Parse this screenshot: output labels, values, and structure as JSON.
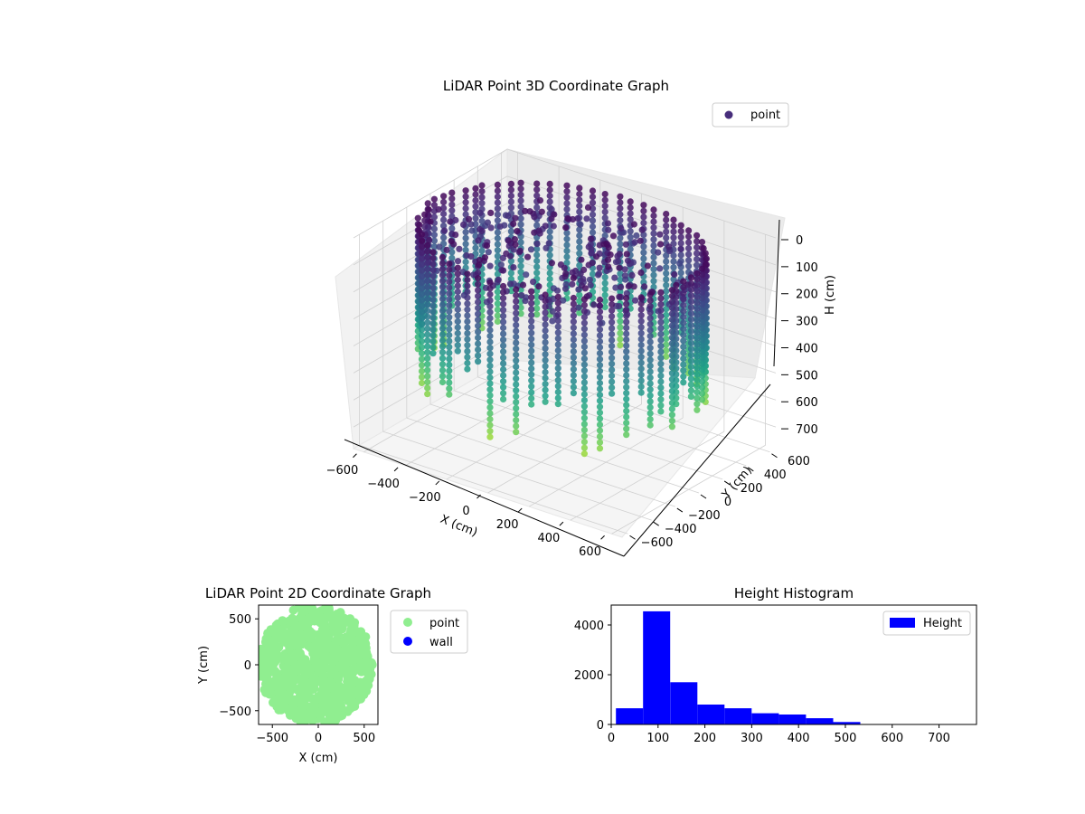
{
  "figure": {
    "background": "#ffffff"
  },
  "chart_data": [
    {
      "id": "lidar-3d",
      "type": "scatter",
      "title": "LiDAR Point 3D Coordinate Graph",
      "xlabel": "X (cm)",
      "ylabel": "Y (cm)",
      "zlabel": "H (cm)",
      "xlim": [
        -650,
        650
      ],
      "ylim": [
        -650,
        650
      ],
      "zlim": [
        0,
        780
      ],
      "z_inverted": true,
      "x_ticks": [
        -600,
        -400,
        -200,
        0,
        200,
        400,
        600
      ],
      "y_ticks": [
        -600,
        -400,
        -200,
        0,
        200,
        400,
        600
      ],
      "z_ticks": [
        0,
        100,
        200,
        300,
        400,
        500,
        600,
        700
      ],
      "grid": true,
      "legend": {
        "position": "top-right",
        "entries": [
          {
            "name": "point",
            "color": "#472d7b"
          }
        ]
      },
      "colormap": "viridis",
      "series": [
        {
          "name": "point",
          "shape": "wall ring scan, columns of points around the room perimeter",
          "room_extent_x": [
            -640,
            600
          ],
          "room_extent_y": [
            -600,
            620
          ],
          "wall_height_range": [
            20,
            600
          ],
          "ceiling_points": true
        }
      ]
    },
    {
      "id": "lidar-2d",
      "type": "scatter",
      "title": "LiDAR Point 2D Coordinate Graph",
      "xlabel": "X (cm)",
      "ylabel": "Y (cm)",
      "xlim": [
        -650,
        650
      ],
      "ylim": [
        -650,
        650
      ],
      "x_ticks": [
        -500,
        0,
        500
      ],
      "y_ticks": [
        -500,
        0,
        500
      ],
      "grid": false,
      "legend": {
        "position": "outside-right",
        "entries": [
          {
            "name": "point",
            "color": "#90ee90"
          },
          {
            "name": "wall",
            "color": "#0000ff"
          }
        ]
      },
      "series": [
        {
          "name": "point",
          "color": "#90ee90",
          "shape": "filled disc",
          "x_range": [
            -650,
            590
          ],
          "y_range": [
            -650,
            650
          ]
        }
      ]
    },
    {
      "id": "height-histogram",
      "type": "bar",
      "title": "Height Histogram",
      "xlabel": "",
      "ylabel": "",
      "xlim": [
        0,
        780
      ],
      "ylim": [
        0,
        4800
      ],
      "x_ticks": [
        0,
        100,
        200,
        300,
        400,
        500,
        600,
        700
      ],
      "y_ticks": [
        0,
        2000,
        4000
      ],
      "grid": false,
      "legend": {
        "position": "top-right",
        "entries": [
          {
            "name": "Height",
            "color": "#0000ff"
          }
        ]
      },
      "bin_edges": [
        10,
        68,
        126,
        184,
        242,
        300,
        358,
        416,
        474,
        532,
        590,
        648,
        706,
        764
      ],
      "values": [
        650,
        4550,
        1700,
        800,
        650,
        450,
        400,
        250,
        100,
        0,
        0,
        0,
        0
      ],
      "series": [
        {
          "name": "Height",
          "color": "#0000ff"
        }
      ]
    }
  ]
}
